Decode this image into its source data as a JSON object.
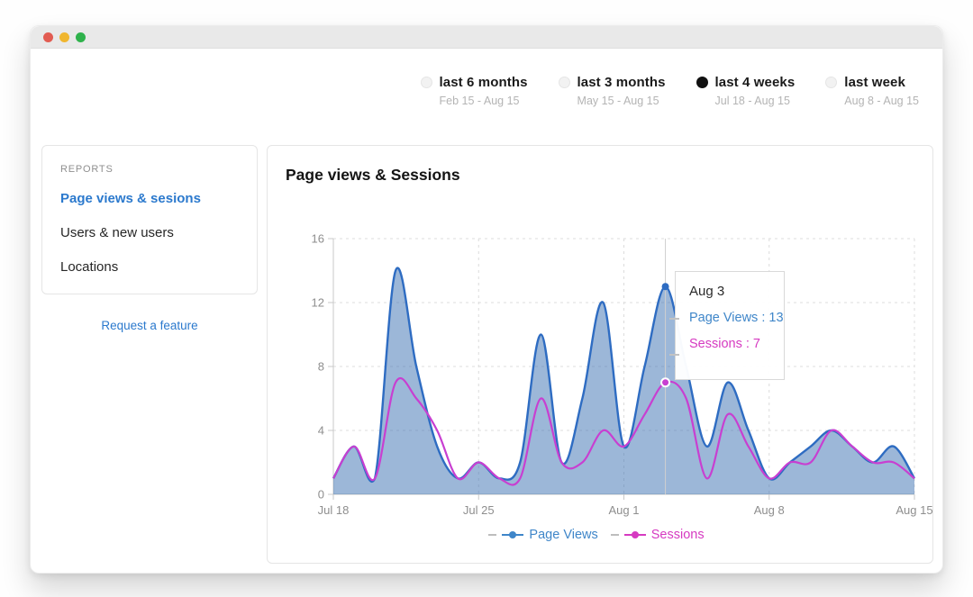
{
  "window": {
    "traffic_lights": [
      "close",
      "minimize",
      "zoom"
    ]
  },
  "time_ranges": [
    {
      "label": "last 6 months",
      "range": "Feb 15 - Aug 15",
      "selected": false
    },
    {
      "label": "last 3 months",
      "range": "May 15 - Aug 15",
      "selected": false
    },
    {
      "label": "last 4 weeks",
      "range": "Jul 18 - Aug 15",
      "selected": true
    },
    {
      "label": "last week",
      "range": "Aug 8 - Aug 15",
      "selected": false
    }
  ],
  "sidebar": {
    "section_label": "REPORTS",
    "items": [
      {
        "label": "Page views & sesions",
        "active": true
      },
      {
        "label": "Users & new users",
        "active": false
      },
      {
        "label": "Locations",
        "active": false
      }
    ],
    "footer_link": "Request a feature"
  },
  "chart_card": {
    "title": "Page views & Sessions"
  },
  "tooltip": {
    "title": "Aug 3",
    "rows": [
      {
        "text": "Page Views : 13"
      },
      {
        "text": "Sessions : 7"
      }
    ]
  },
  "legend": {
    "items": [
      {
        "label": "Page Views",
        "color": "#3f86c9"
      },
      {
        "label": "Sessions",
        "color": "#d63ac1"
      }
    ]
  },
  "colors": {
    "pageviews_line": "#2e6cc2",
    "pageviews_fill": "rgba(58,112,178,0.5)",
    "sessions_line": "#c83fd1",
    "active_nav_blue": "#2b79cd",
    "grid": "#dcdcdc",
    "axis": "#c9c9c9",
    "crosshair": "#cfcfcf"
  },
  "chart_data": {
    "type": "area",
    "title": "Page views & Sessions",
    "dates": [
      "Jul 18",
      "Jul 19",
      "Jul 20",
      "Jul 21",
      "Jul 22",
      "Jul 23",
      "Jul 24",
      "Jul 25",
      "Jul 26",
      "Jul 27",
      "Jul 28",
      "Jul 29",
      "Jul 30",
      "Jul 31",
      "Aug 1",
      "Aug 2",
      "Aug 3",
      "Aug 4",
      "Aug 5",
      "Aug 6",
      "Aug 7",
      "Aug 8",
      "Aug 9",
      "Aug 10",
      "Aug 11",
      "Aug 12",
      "Aug 13",
      "Aug 14",
      "Aug 15"
    ],
    "series": [
      {
        "name": "Page Views",
        "color": "#2e6cc2",
        "values": [
          1,
          3,
          1,
          14,
          8,
          3,
          1,
          2,
          1,
          2,
          10,
          2,
          6,
          12,
          3,
          8,
          13,
          8,
          3,
          7,
          4,
          1,
          2,
          3,
          4,
          3,
          2,
          3,
          1
        ]
      },
      {
        "name": "Sessions",
        "color": "#c83fd1",
        "values": [
          1,
          3,
          1,
          7,
          6,
          4,
          1,
          2,
          1,
          1,
          6,
          2,
          2,
          4,
          3,
          5,
          7,
          6,
          1,
          5,
          3,
          1,
          2,
          2,
          4,
          3,
          2,
          2,
          1
        ]
      }
    ],
    "ylim": [
      0,
      16
    ],
    "yticks": [
      0,
      4,
      8,
      12,
      16
    ],
    "x_tick_days": [
      0,
      7,
      14,
      21,
      28
    ],
    "x_tick_labels": [
      "Jul 18",
      "Jul 25",
      "Aug 1",
      "Aug 8",
      "Aug 15"
    ],
    "grid": "dashed",
    "legend_position": "bottom",
    "highlight": {
      "date": "Aug 3",
      "index": 16,
      "page_views": 13,
      "sessions": 7
    }
  }
}
